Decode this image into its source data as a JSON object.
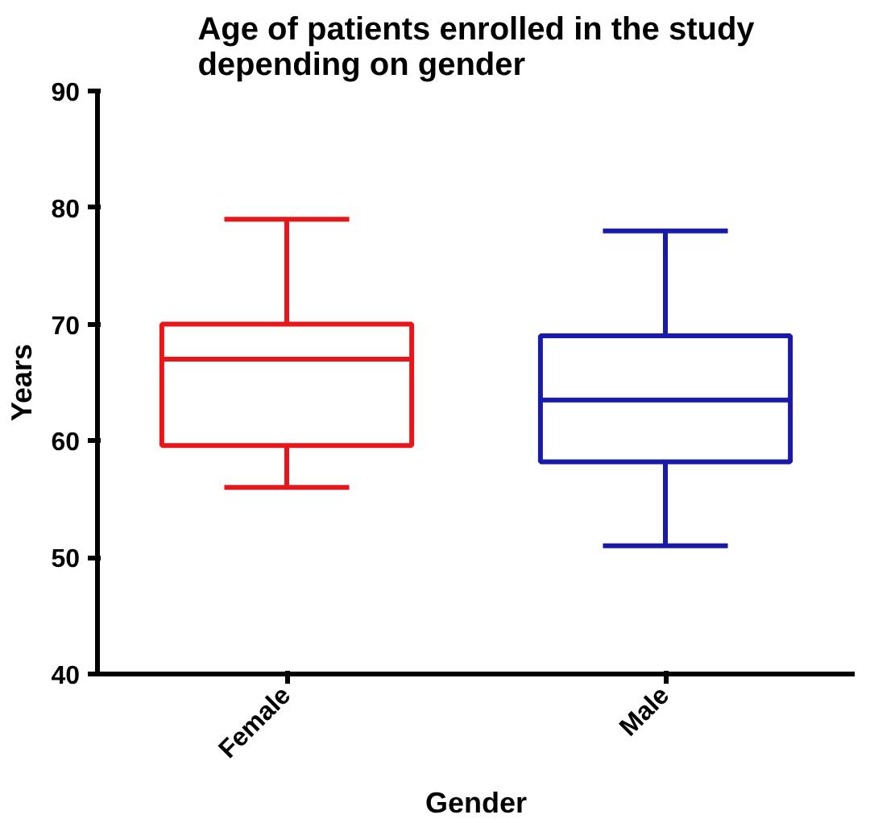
{
  "chart_data": {
    "type": "box",
    "title": "Age of patients enrolled in the study depending on gender",
    "xlabel": "Gender",
    "ylabel": "Years",
    "categories": [
      "Female",
      "Male"
    ],
    "series": [
      {
        "color": "#e8161b",
        "boxes": [
          {
            "low": 56,
            "q1": 59.6,
            "median": 67,
            "q3": 70,
            "high": 79
          },
          null
        ]
      },
      {
        "color": "#1a1aaa",
        "boxes": [
          null,
          {
            "low": 51,
            "q1": 58.2,
            "median": 63.5,
            "q3": 69,
            "high": 78
          }
        ]
      }
    ],
    "ylim": [
      40,
      90
    ],
    "yticks": [
      40,
      50,
      60,
      70,
      80,
      90
    ],
    "grid": false
  }
}
